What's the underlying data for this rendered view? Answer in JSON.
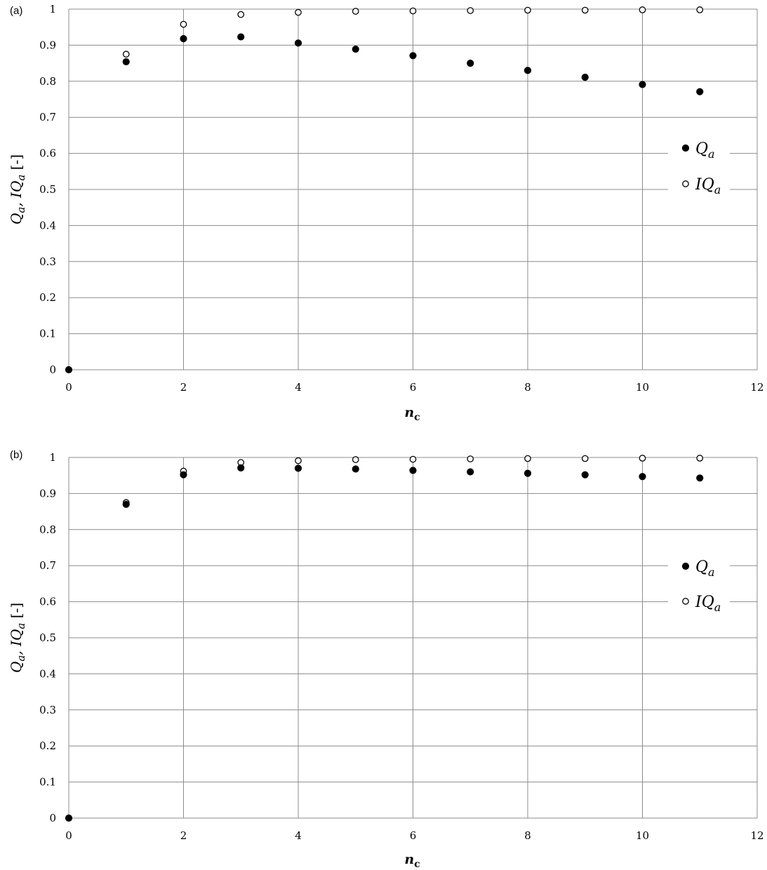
{
  "chart_data": [
    {
      "type": "scatter",
      "panel_label": "(a)",
      "title": "",
      "xlabel": "n",
      "xlabel_subscript": "c",
      "ylabel": "Q",
      "ylabel_sub": "a",
      "ylabel_mid": ", IQ",
      "ylabel_sub2": "a",
      "ylabel_tail": " [-]",
      "xlim": [
        0,
        12
      ],
      "ylim": [
        0,
        1
      ],
      "xticks": [
        "0",
        "2",
        "4",
        "6",
        "8",
        "10",
        "12"
      ],
      "yticks": [
        "0",
        "0.1",
        "0.2",
        "0.3",
        "0.4",
        "0.5",
        "0.6",
        "0.7",
        "0.8",
        "0.9",
        "1"
      ],
      "grid": true,
      "legend_position": "right",
      "series": [
        {
          "name": "Qa",
          "legend_main": "Q",
          "legend_sub": "a",
          "marker": "filled-circle",
          "x": [
            0,
            1,
            2,
            3,
            4,
            5,
            6,
            7,
            8,
            9,
            10,
            11
          ],
          "y": [
            0,
            0.854,
            0.918,
            0.923,
            0.906,
            0.889,
            0.871,
            0.85,
            0.83,
            0.811,
            0.791,
            0.771
          ]
        },
        {
          "name": "IQa",
          "legend_main": "IQ",
          "legend_sub": "a",
          "marker": "open-circle",
          "x": [
            1,
            2,
            3,
            4,
            5,
            6,
            7,
            8,
            9,
            10,
            11
          ],
          "y": [
            0.875,
            0.958,
            0.985,
            0.991,
            0.994,
            0.995,
            0.996,
            0.997,
            0.997,
            0.998,
            0.998
          ]
        }
      ]
    },
    {
      "type": "scatter",
      "panel_label": "(b)",
      "title": "",
      "xlabel": "n",
      "xlabel_subscript": "c",
      "ylabel": "Q",
      "ylabel_sub": "a",
      "ylabel_mid": ", IQ",
      "ylabel_sub2": "a",
      "ylabel_tail": " [-]",
      "xlim": [
        0,
        12
      ],
      "ylim": [
        0,
        1
      ],
      "xticks": [
        "0",
        "2",
        "4",
        "6",
        "8",
        "10",
        "12"
      ],
      "yticks": [
        "0",
        "0.1",
        "0.2",
        "0.3",
        "0.4",
        "0.5",
        "0.6",
        "0.7",
        "0.8",
        "0.9",
        "1"
      ],
      "grid": true,
      "legend_position": "right",
      "series": [
        {
          "name": "Qa",
          "legend_main": "Q",
          "legend_sub": "a",
          "marker": "filled-circle",
          "x": [
            0,
            1,
            2,
            3,
            4,
            5,
            6,
            7,
            8,
            9,
            10,
            11
          ],
          "y": [
            0,
            0.87,
            0.952,
            0.971,
            0.97,
            0.968,
            0.964,
            0.96,
            0.956,
            0.952,
            0.947,
            0.943
          ]
        },
        {
          "name": "IQa",
          "legend_main": "IQ",
          "legend_sub": "a",
          "marker": "open-circle",
          "x": [
            1,
            2,
            3,
            4,
            5,
            6,
            7,
            8,
            9,
            10,
            11
          ],
          "y": [
            0.875,
            0.962,
            0.986,
            0.991,
            0.994,
            0.995,
            0.996,
            0.997,
            0.997,
            0.998,
            0.998
          ]
        }
      ]
    }
  ]
}
